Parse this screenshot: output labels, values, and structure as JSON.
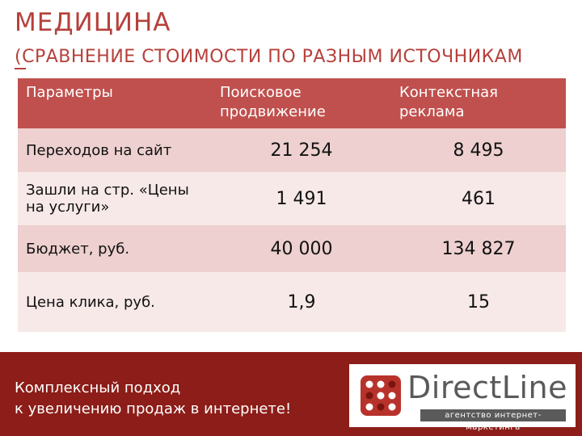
{
  "slide": {
    "title": "МЕДИЦИНА",
    "subtitle": "(СРАВНЕНИЕ СТОИМОСТИ ПО РАЗНЫМ ИСТОЧНИКАМ"
  },
  "table": {
    "headers": [
      "Параметры",
      "Поисковое продвижение",
      "Контекстная реклама"
    ],
    "rows": [
      {
        "param": "Переходов на сайт",
        "search": "21 254",
        "context": "8 495"
      },
      {
        "param": "Зашли на стр. «Цены на услуги»",
        "search": "1 491",
        "context": "461"
      },
      {
        "param": "Бюджет, руб.",
        "search": "40 000",
        "context": "134 827"
      },
      {
        "param": "Цена клика, руб.",
        "search": "1,9",
        "context": "15"
      }
    ]
  },
  "footer": {
    "tagline_line1": "Комплексный подход",
    "tagline_line2": "к увеличению продаж в интернете!",
    "logo_name": "DirectLine",
    "logo_sub": "агентство интернет-маркетинга"
  },
  "colors": {
    "accent": "#c0504d",
    "footer": "#8c1d18",
    "title": "#b6403b"
  }
}
